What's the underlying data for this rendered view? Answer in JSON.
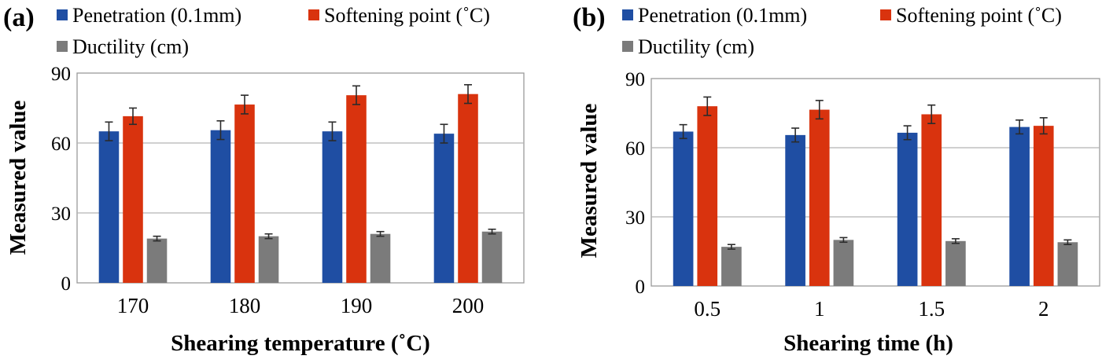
{
  "chart_data": [
    {
      "type": "bar",
      "panel_label": "(a)",
      "categories": [
        "170",
        "180",
        "190",
        "200"
      ],
      "series": [
        {
          "name": "Penetration (0.1mm)",
          "color": "#1f4ea3",
          "values": [
            65,
            65.5,
            65,
            64
          ],
          "errors": [
            4,
            4,
            4,
            4
          ]
        },
        {
          "name": "Softening point (˚C)",
          "color": "#d9330e",
          "values": [
            71.5,
            76.5,
            80.5,
            81
          ],
          "errors": [
            3.5,
            4,
            4,
            4
          ]
        },
        {
          "name": "Ductility (cm)",
          "color": "#7b7b7b",
          "values": [
            19,
            20,
            21,
            22
          ],
          "errors": [
            1,
            1,
            1,
            1
          ]
        }
      ],
      "xlabel": "Shearing temperature (˚C)",
      "ylabel": "Measured value",
      "ylim": [
        0,
        90
      ],
      "yticks": [
        "0",
        "30",
        "60",
        "90"
      ],
      "grid": true,
      "legend": "top"
    },
    {
      "type": "bar",
      "panel_label": "(b)",
      "categories": [
        "0.5",
        "1",
        "1.5",
        "2"
      ],
      "series": [
        {
          "name": "Penetration (0.1mm)",
          "color": "#1f4ea3",
          "values": [
            67,
            65.5,
            66.5,
            69
          ],
          "errors": [
            3,
            3,
            3,
            3
          ]
        },
        {
          "name": "Softening point (˚C)",
          "color": "#d9330e",
          "values": [
            78,
            76.5,
            74.5,
            69.5
          ],
          "errors": [
            4,
            4,
            4,
            3.5
          ]
        },
        {
          "name": "Ductility (cm)",
          "color": "#7b7b7b",
          "values": [
            17,
            20,
            19.5,
            19
          ],
          "errors": [
            1,
            1,
            1,
            1
          ]
        }
      ],
      "xlabel": "Shearing time (h)",
      "ylabel": "Measured value",
      "ylim": [
        0,
        90
      ],
      "yticks": [
        "0",
        "30",
        "60",
        "90"
      ],
      "grid": true,
      "legend": "top"
    }
  ]
}
